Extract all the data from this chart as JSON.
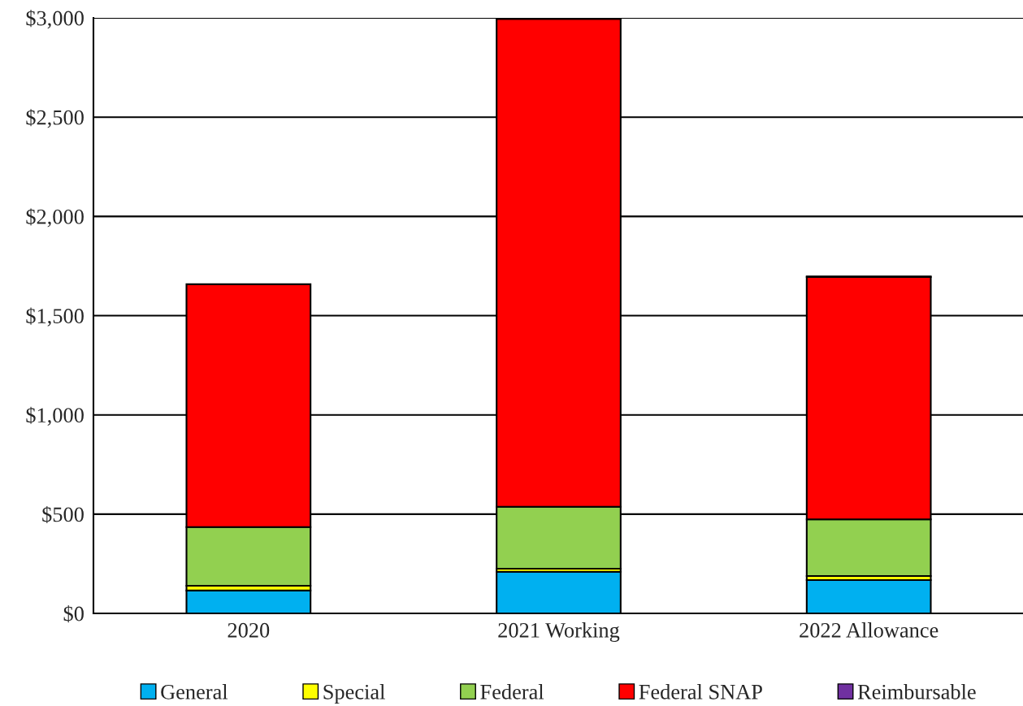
{
  "chart_data": {
    "type": "bar",
    "stacked": true,
    "categories": [
      "2020",
      "2021 Working",
      "2022 Allowance"
    ],
    "series": [
      {
        "name": "General",
        "color": "#00b0f0",
        "values": [
          115,
          210,
          168
        ]
      },
      {
        "name": "Special",
        "color": "#ffff00",
        "values": [
          24,
          15,
          20
        ]
      },
      {
        "name": "Federal",
        "color": "#92d050",
        "values": [
          296,
          312,
          286
        ]
      },
      {
        "name": "Federal SNAP",
        "color": "#ff0000",
        "values": [
          1223,
          2458,
          1221
        ]
      },
      {
        "name": "Reimbursable",
        "color": "#7030a0",
        "values": [
          0,
          5,
          2
        ]
      }
    ],
    "ylim": [
      0,
      3000
    ],
    "yticks": [
      {
        "value": 0,
        "label": "$0"
      },
      {
        "value": 500,
        "label": "$500"
      },
      {
        "value": 1000,
        "label": "$1,000"
      },
      {
        "value": 1500,
        "label": "$1,500"
      },
      {
        "value": 2000,
        "label": "$2,000"
      },
      {
        "value": 2500,
        "label": "$2,500"
      },
      {
        "value": 3000,
        "label": "$3,000"
      }
    ],
    "grid": "y",
    "legend": "bottom"
  }
}
